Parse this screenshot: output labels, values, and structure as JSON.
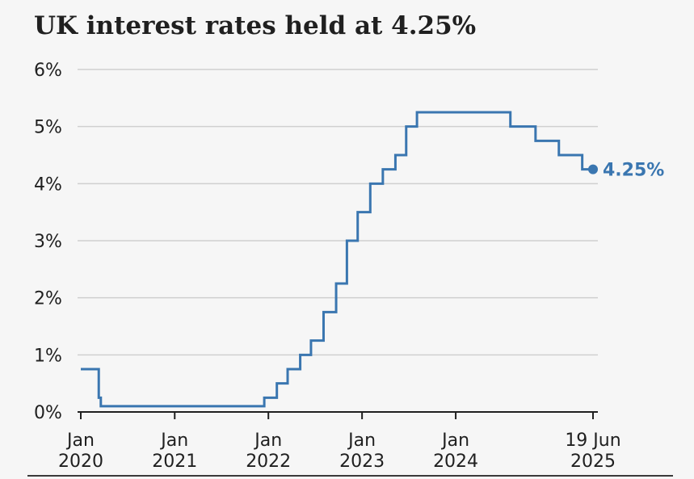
{
  "chart_data": {
    "type": "line",
    "title": "UK interest rates held at 4.25%",
    "xlabel": "",
    "ylabel": "",
    "ylim": [
      0,
      6
    ],
    "xlim": [
      "2020-01-01",
      "2025-06-19"
    ],
    "y_ticks": [
      {
        "value": 0,
        "label": "0%"
      },
      {
        "value": 1,
        "label": "1%"
      },
      {
        "value": 2,
        "label": "2%"
      },
      {
        "value": 3,
        "label": "3%"
      },
      {
        "value": 4,
        "label": "4%"
      },
      {
        "value": 5,
        "label": "5%"
      },
      {
        "value": 6,
        "label": "6%"
      }
    ],
    "x_ticks": [
      {
        "date": "2020-01-01",
        "line1": "Jan",
        "line2": "2020"
      },
      {
        "date": "2021-01-01",
        "line1": "Jan",
        "line2": "2021"
      },
      {
        "date": "2022-01-01",
        "line1": "Jan",
        "line2": "2022"
      },
      {
        "date": "2023-01-01",
        "line1": "Jan",
        "line2": "2023"
      },
      {
        "date": "2024-01-01",
        "line1": "Jan",
        "line2": "2024"
      },
      {
        "date": "2025-06-19",
        "line1": "19 Jun",
        "line2": "2025"
      }
    ],
    "grid": true,
    "series": [
      {
        "color": "#3a76b0",
        "step": true,
        "points": [
          {
            "x": "2020-01-01",
            "y": 0.75
          },
          {
            "x": "2020-03-11",
            "y": 0.25
          },
          {
            "x": "2020-03-19",
            "y": 0.1
          },
          {
            "x": "2021-12-16",
            "y": 0.25
          },
          {
            "x": "2022-02-03",
            "y": 0.5
          },
          {
            "x": "2022-03-17",
            "y": 0.75
          },
          {
            "x": "2022-05-05",
            "y": 1.0
          },
          {
            "x": "2022-06-16",
            "y": 1.25
          },
          {
            "x": "2022-08-04",
            "y": 1.75
          },
          {
            "x": "2022-09-22",
            "y": 2.25
          },
          {
            "x": "2022-11-03",
            "y": 3.0
          },
          {
            "x": "2022-12-15",
            "y": 3.5
          },
          {
            "x": "2023-02-02",
            "y": 4.0
          },
          {
            "x": "2023-03-23",
            "y": 4.25
          },
          {
            "x": "2023-05-11",
            "y": 4.5
          },
          {
            "x": "2023-06-22",
            "y": 5.0
          },
          {
            "x": "2023-08-03",
            "y": 5.25
          },
          {
            "x": "2024-08-01",
            "y": 5.0
          },
          {
            "x": "2024-11-07",
            "y": 4.75
          },
          {
            "x": "2025-02-06",
            "y": 4.5
          },
          {
            "x": "2025-05-08",
            "y": 4.25
          },
          {
            "x": "2025-06-19",
            "y": 4.25
          }
        ],
        "end_label": "4.25%"
      }
    ]
  }
}
